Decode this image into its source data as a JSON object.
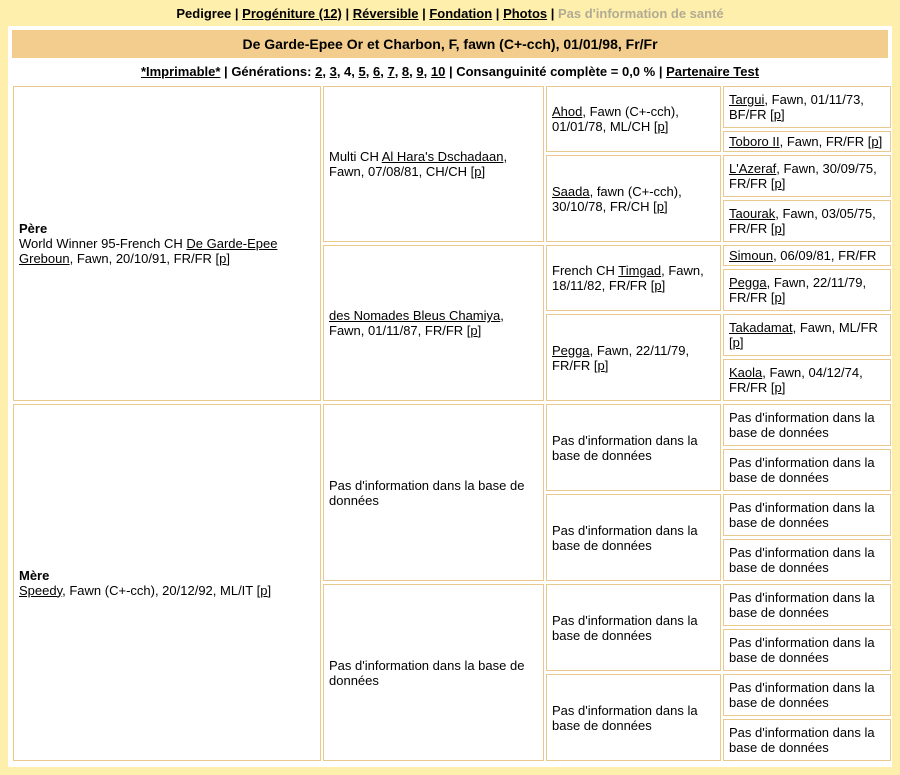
{
  "nav": {
    "segments": [
      {
        "t": "Pedigree",
        "cls": "current",
        "name": "nav-pedigree"
      },
      {
        "t": " | "
      },
      {
        "t": "Progéniture (12)",
        "link": true,
        "name": "nav-progeniture"
      },
      {
        "t": " | "
      },
      {
        "t": "Réversible",
        "link": true,
        "name": "nav-reversible"
      },
      {
        "t": " | "
      },
      {
        "t": "Fondation",
        "link": true,
        "name": "nav-fondation"
      },
      {
        "t": " | "
      },
      {
        "t": "Photos",
        "link": true,
        "name": "nav-photos"
      },
      {
        "t": " | "
      },
      {
        "t": "Pas d'information de santé",
        "cls": "disabled",
        "name": "nav-health-info"
      }
    ]
  },
  "banner": {
    "title": "De Garde-Epee Or et Charbon, F, fawn (C+-cch), 01/01/98, Fr/Fr"
  },
  "toolbar": {
    "segments": [
      {
        "t": "*Imprimable*",
        "link": true,
        "name": "printable-link"
      },
      {
        "t": " | "
      },
      {
        "t": "Générations: "
      },
      {
        "t": "2",
        "link": true,
        "name": "generations-2-link"
      },
      {
        "t": ", "
      },
      {
        "t": "3",
        "link": true,
        "name": "generations-3-link"
      },
      {
        "t": ", "
      },
      {
        "t": "4",
        "name": "generations-4-current"
      },
      {
        "t": ", "
      },
      {
        "t": "5",
        "link": true,
        "name": "generations-5-link"
      },
      {
        "t": ", "
      },
      {
        "t": "6",
        "link": true,
        "name": "generations-6-link"
      },
      {
        "t": ", "
      },
      {
        "t": "7",
        "link": true,
        "name": "generations-7-link"
      },
      {
        "t": ", "
      },
      {
        "t": "8",
        "link": true,
        "name": "generations-8-link"
      },
      {
        "t": ", "
      },
      {
        "t": "9",
        "link": true,
        "name": "generations-9-link"
      },
      {
        "t": ", "
      },
      {
        "t": "10",
        "link": true,
        "name": "generations-10-link"
      },
      {
        "t": " | Consanguinité complète = 0,0 % | "
      },
      {
        "t": "Partenaire Test",
        "link": true,
        "name": "partner-test-link"
      }
    ]
  },
  "pedigree": {
    "sire": {
      "label": "Père",
      "segments": [
        {
          "t": "World Winner 95-French CH "
        },
        {
          "t": "De Garde-Epee Greboun",
          "link": true,
          "name": "link-de-garde-epee-greboun"
        },
        {
          "t": ", Fawn, 20/10/91, FR/FR "
        },
        {
          "t": "["
        },
        {
          "t": "p",
          "link": true,
          "name": "pedigree-p-link"
        },
        {
          "t": "]"
        }
      ]
    },
    "dam": {
      "label": "Mère",
      "segments": [
        {
          "t": "Speedy",
          "link": true,
          "name": "link-speedy"
        },
        {
          "t": ", Fawn (C+-cch), 20/12/92, ML/IT "
        },
        {
          "t": "["
        },
        {
          "t": "p",
          "link": true,
          "name": "pedigree-p-link"
        },
        {
          "t": "]"
        }
      ]
    },
    "s_g2a": {
      "segments": [
        {
          "t": "Multi CH "
        },
        {
          "t": "Al Hara's Dschadaan",
          "link": true,
          "name": "link-al-haras-dschadaan"
        },
        {
          "t": ", Fawn, 07/08/81, CH/CH "
        },
        {
          "t": "["
        },
        {
          "t": "p",
          "link": true,
          "name": "pedigree-p-link"
        },
        {
          "t": "]"
        }
      ]
    },
    "s_g2b": {
      "segments": [
        {
          "t": "des Nomades Bleus Chamiya",
          "link": true,
          "name": "link-des-nomades-bleus-chamiya"
        },
        {
          "t": ", Fawn, 01/11/87, FR/FR "
        },
        {
          "t": "["
        },
        {
          "t": "p",
          "link": true,
          "name": "pedigree-p-link"
        },
        {
          "t": "]"
        }
      ]
    },
    "s_g3a": {
      "segments": [
        {
          "t": "Ahod",
          "link": true,
          "name": "link-ahod"
        },
        {
          "t": ", Fawn (C+-cch), 01/01/78, ML/CH "
        },
        {
          "t": "["
        },
        {
          "t": "p",
          "link": true,
          "name": "pedigree-p-link"
        },
        {
          "t": "]"
        }
      ]
    },
    "s_g3b": {
      "segments": [
        {
          "t": "Saada",
          "link": true,
          "name": "link-saada"
        },
        {
          "t": ", fawn (C+-cch), 30/10/78, FR/CH "
        },
        {
          "t": "["
        },
        {
          "t": "p",
          "link": true,
          "name": "pedigree-p-link"
        },
        {
          "t": "]"
        }
      ]
    },
    "s_g3c": {
      "segments": [
        {
          "t": "French CH "
        },
        {
          "t": "Timgad",
          "link": true,
          "name": "link-timgad"
        },
        {
          "t": ", Fawn, 18/11/82, FR/FR "
        },
        {
          "t": "["
        },
        {
          "t": "p",
          "link": true,
          "name": "pedigree-p-link"
        },
        {
          "t": "]"
        }
      ]
    },
    "s_g3d": {
      "segments": [
        {
          "t": "Pegga",
          "link": true,
          "name": "link-pegga"
        },
        {
          "t": ", Fawn, 22/11/79, FR/FR "
        },
        {
          "t": "["
        },
        {
          "t": "p",
          "link": true,
          "name": "pedigree-p-link"
        },
        {
          "t": "]"
        }
      ]
    },
    "s_g4_1": {
      "segments": [
        {
          "t": "Targui",
          "link": true,
          "name": "link-targui"
        },
        {
          "t": ", Fawn, 01/11/73, BF/FR "
        },
        {
          "t": "["
        },
        {
          "t": "p",
          "link": true,
          "name": "pedigree-p-link"
        },
        {
          "t": "]"
        }
      ]
    },
    "s_g4_2": {
      "segments": [
        {
          "t": "Toboro II",
          "link": true,
          "name": "link-toboro-ii"
        },
        {
          "t": ", Fawn, FR/FR "
        },
        {
          "t": "["
        },
        {
          "t": "p",
          "link": true,
          "name": "pedigree-p-link"
        },
        {
          "t": "]"
        }
      ]
    },
    "s_g4_3": {
      "segments": [
        {
          "t": "L'Azeraf",
          "link": true,
          "name": "link-lazeraf"
        },
        {
          "t": ", Fawn, 30/09/75, FR/FR "
        },
        {
          "t": "["
        },
        {
          "t": "p",
          "link": true,
          "name": "pedigree-p-link"
        },
        {
          "t": "]"
        }
      ]
    },
    "s_g4_4": {
      "segments": [
        {
          "t": "Taourak",
          "link": true,
          "name": "link-taourak"
        },
        {
          "t": ", Fawn, 03/05/75, FR/FR "
        },
        {
          "t": "["
        },
        {
          "t": "p",
          "link": true,
          "name": "pedigree-p-link"
        },
        {
          "t": "]"
        }
      ]
    },
    "s_g4_5": {
      "segments": [
        {
          "t": "Simoun",
          "link": true,
          "name": "link-simoun"
        },
        {
          "t": ", 06/09/81, FR/FR"
        }
      ]
    },
    "s_g4_6": {
      "segments": [
        {
          "t": "Pegga",
          "link": true,
          "name": "link-pegga"
        },
        {
          "t": ", Fawn, 22/11/79, FR/FR "
        },
        {
          "t": "["
        },
        {
          "t": "p",
          "link": true,
          "name": "pedigree-p-link"
        },
        {
          "t": "]"
        }
      ]
    },
    "s_g4_7": {
      "segments": [
        {
          "t": "Takadamat",
          "link": true,
          "name": "link-takadamat"
        },
        {
          "t": ", Fawn, ML/FR "
        },
        {
          "t": "["
        },
        {
          "t": "p",
          "link": true,
          "name": "pedigree-p-link"
        },
        {
          "t": "]"
        }
      ]
    },
    "s_g4_8": {
      "segments": [
        {
          "t": "Kaola",
          "link": true,
          "name": "link-kaola"
        },
        {
          "t": ", Fawn, 04/12/74, FR/FR "
        },
        {
          "t": "["
        },
        {
          "t": "p",
          "link": true,
          "name": "pedigree-p-link"
        },
        {
          "t": "]"
        }
      ]
    },
    "no_info": {
      "segments": [
        {
          "t": "Pas d'information dans la base de données"
        }
      ]
    }
  },
  "colors": {
    "page_bg": "#ffefac",
    "banner_bg": "#f2cd8e",
    "cell_border": "#eac98f",
    "disabled_text": "#b1ab93"
  }
}
